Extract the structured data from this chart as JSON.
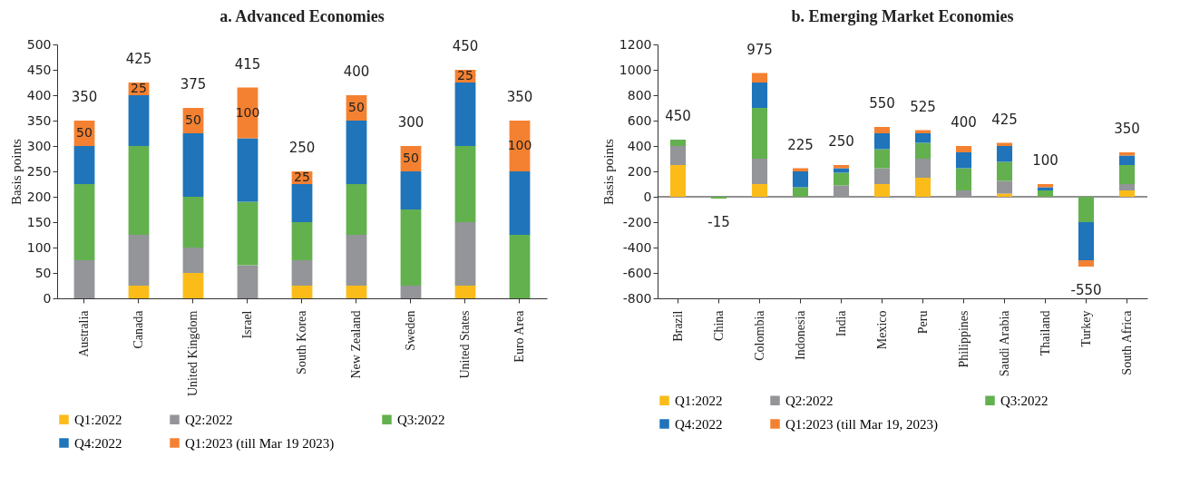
{
  "chart_data": [
    {
      "type": "bar",
      "stacked": true,
      "title": "a. Advanced Economies",
      "ylabel": "Basis points",
      "categories": [
        "Australia",
        "Canada",
        "United Kingdom",
        "Israel",
        "South Korea",
        "New Zealand",
        "Sweden",
        "United States",
        "Euro Area"
      ],
      "series": [
        {
          "name": "Q1:2022",
          "color": "#fbbc1a",
          "values": [
            0,
            25,
            50,
            0,
            25,
            25,
            0,
            25,
            0
          ]
        },
        {
          "name": "Q2:2022",
          "color": "#939598",
          "values": [
            75,
            100,
            50,
            65,
            50,
            100,
            25,
            125,
            0
          ]
        },
        {
          "name": "Q3:2022",
          "color": "#63b04f",
          "values": [
            150,
            175,
            100,
            125,
            75,
            100,
            150,
            150,
            125
          ]
        },
        {
          "name": "Q4:2022",
          "color": "#1f74ba",
          "values": [
            75,
            100,
            125,
            125,
            75,
            125,
            75,
            125,
            125
          ]
        },
        {
          "name": "Q1:2023 (till Mar 19 2023)",
          "color": "#f48131",
          "values": [
            50,
            25,
            50,
            100,
            25,
            50,
            50,
            25,
            100
          ],
          "value_labels": [
            "50",
            "25",
            "50",
            "100",
            "25",
            "50",
            "50",
            "25",
            "100"
          ]
        }
      ],
      "totals": [
        "350",
        "425",
        "375",
        "415",
        "250",
        "400",
        "300",
        "450",
        "350"
      ],
      "ylim": [
        0,
        500
      ],
      "yticks": [
        0,
        50,
        100,
        150,
        200,
        250,
        300,
        350,
        400,
        450,
        500
      ],
      "grid": false,
      "legend": "bottom"
    },
    {
      "type": "bar",
      "stacked": true,
      "title": "b. Emerging Market Economies",
      "ylabel": "Basis points",
      "categories": [
        "Brazil",
        "China",
        "Colombia",
        "Indonesia",
        "India",
        "Mexico",
        "Peru",
        "Philippines",
        "Saudi Arabia",
        "Thailand",
        "Turkey",
        "South Africa"
      ],
      "series": [
        {
          "name": "Q1:2022",
          "color": "#fbbc1a",
          "values": [
            250,
            0,
            100,
            0,
            0,
            100,
            150,
            0,
            25,
            0,
            0,
            50
          ]
        },
        {
          "name": "Q2:2022",
          "color": "#939598",
          "values": [
            150,
            0,
            200,
            0,
            90,
            125,
            150,
            50,
            100,
            0,
            0,
            50
          ]
        },
        {
          "name": "Q3:2022",
          "color": "#63b04f",
          "values": [
            50,
            -15,
            400,
            75,
            100,
            150,
            125,
            175,
            150,
            50,
            -200,
            150
          ]
        },
        {
          "name": "Q4:2022",
          "color": "#1f74ba",
          "values": [
            0,
            0,
            200,
            125,
            35,
            125,
            75,
            125,
            125,
            25,
            -300,
            75
          ]
        },
        {
          "name": "Q1:2023 (till Mar 19, 2023)",
          "color": "#f48131",
          "values": [
            0,
            0,
            75,
            25,
            25,
            50,
            25,
            50,
            25,
            25,
            -50,
            25
          ]
        }
      ],
      "totals": [
        "450",
        "-15",
        "975",
        "225",
        "250",
        "550",
        "525",
        "400",
        "425",
        "100",
        "-550",
        "350"
      ],
      "ylim": [
        -800,
        1200
      ],
      "yticks": [
        -800,
        -600,
        -400,
        -200,
        0,
        200,
        400,
        600,
        800,
        1000,
        1200
      ],
      "ref_lines": [
        {
          "axis": "y",
          "value": 0,
          "color": "#222222"
        }
      ],
      "grid": false,
      "legend": "bottom"
    }
  ]
}
